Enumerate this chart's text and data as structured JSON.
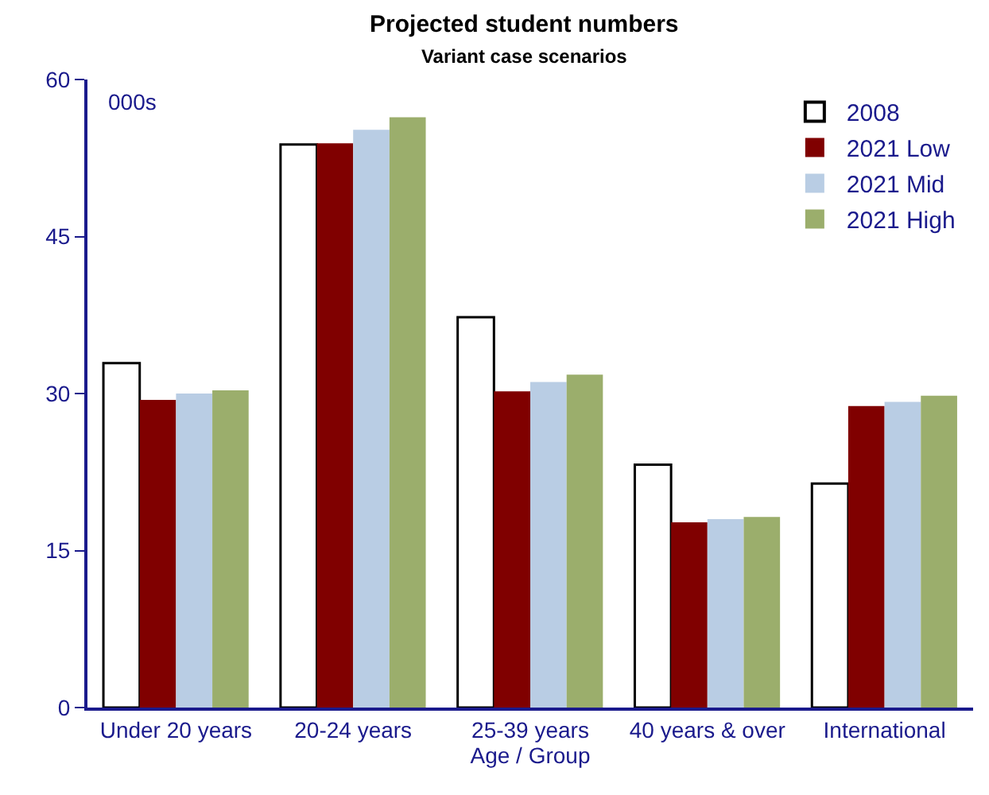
{
  "chart_data": {
    "type": "bar",
    "title": "Projected student numbers",
    "subtitle": "Variant case scenarios",
    "xlabel": "Age / Group",
    "annotations": [
      "000s"
    ],
    "categories": [
      "Under 20 years",
      "20-24 years",
      "25-39 years",
      "40 years & over",
      "International"
    ],
    "series": [
      {
        "name": "2008",
        "color": "#ffffff",
        "values": [
          32.9,
          53.8,
          37.3,
          23.2,
          21.4
        ]
      },
      {
        "name": "2021 Low",
        "color": "#800000",
        "values": [
          29.4,
          53.9,
          30.2,
          17.7,
          28.8
        ]
      },
      {
        "name": "2021 Mid",
        "color": "#b9cde4",
        "values": [
          30.0,
          55.2,
          31.1,
          18.0,
          29.2
        ]
      },
      {
        "name": "2021 High",
        "color": "#9bae6c",
        "values": [
          30.3,
          56.4,
          31.8,
          18.2,
          29.8
        ]
      }
    ],
    "ylim": [
      0,
      60
    ],
    "yticks": [
      0,
      15,
      30,
      45,
      60
    ],
    "grid": false,
    "legend": "top right"
  }
}
